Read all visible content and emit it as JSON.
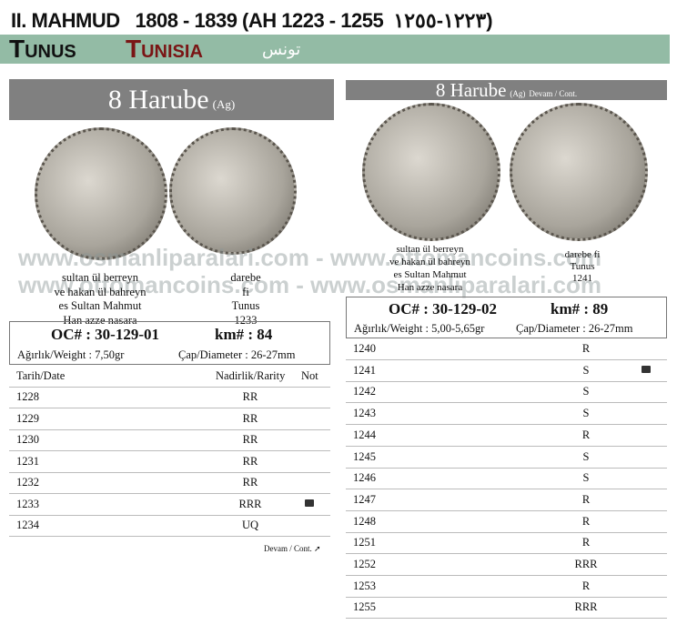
{
  "header": {
    "title": "II. MAHMUD   1808 - 1839 (AH 1223 - 1255  ١٢٢٣-١٢٥٥)",
    "tunus": "Tunus",
    "tunisia": "Tunisia",
    "arabic": "تونس"
  },
  "watermark": {
    "line1": "www.osmanliparalari.com - www.ottomancoins.com",
    "line2": "www.ottomancoins.com - www.osmanliparalari.com"
  },
  "left": {
    "denom": "8 Harube",
    "metal": "(Ag)",
    "obverse": [
      "sultan ül berreyn",
      "ve hakan ül bahreyn",
      "es Sultan Mahmut",
      "Han azze nasara"
    ],
    "reverse": [
      "darebe",
      "fi",
      "Tunus",
      "1233"
    ],
    "oc": "OC# : 30-129-01",
    "km": "km# : 84",
    "weight": "Ağırlık/Weight :  7,50gr",
    "diameter": "Çap/Diameter :  26-27mm",
    "headers": {
      "date": "Tarih/Date",
      "rarity": "Nadirlik/Rarity",
      "note": "Not"
    },
    "rows": [
      {
        "date": "1228",
        "rarity": "RR"
      },
      {
        "date": "1229",
        "rarity": "RR"
      },
      {
        "date": "1230",
        "rarity": "RR"
      },
      {
        "date": "1231",
        "rarity": "RR"
      },
      {
        "date": "1232",
        "rarity": "RR"
      },
      {
        "date": "1233",
        "rarity": "RRR",
        "note": "photo"
      },
      {
        "date": "1234",
        "rarity": "UQ"
      }
    ],
    "cont": "Devam / Cont. ➚"
  },
  "right": {
    "denom": "8 Harube",
    "metal": "(Ag)",
    "cont": "Devam / Cont.",
    "obverse": [
      "sultan ül berreyn",
      "ve hakan ül bahreyn",
      "es Sultan Mahmut",
      "Han azze nasara"
    ],
    "reverse": [
      "darebe fi",
      "Tunus",
      "1241"
    ],
    "oc": "OC# : 30-129-02",
    "km": "km# : 89",
    "weight": "Ağırlık/Weight :  5,00-5,65gr",
    "diameter": "Çap/Diameter :  26-27mm",
    "rows": [
      {
        "date": "1240",
        "rarity": "R"
      },
      {
        "date": "1241",
        "rarity": "S",
        "note": "photo"
      },
      {
        "date": "1242",
        "rarity": "S"
      },
      {
        "date": "1243",
        "rarity": "S"
      },
      {
        "date": "1244",
        "rarity": "R"
      },
      {
        "date": "1245",
        "rarity": "S"
      },
      {
        "date": "1246",
        "rarity": "S"
      },
      {
        "date": "1247",
        "rarity": "R"
      },
      {
        "date": "1248",
        "rarity": "R"
      },
      {
        "date": "1251",
        "rarity": "R"
      },
      {
        "date": "1252",
        "rarity": "RRR"
      },
      {
        "date": "1253",
        "rarity": "R"
      },
      {
        "date": "1255",
        "rarity": "RRR"
      }
    ]
  }
}
